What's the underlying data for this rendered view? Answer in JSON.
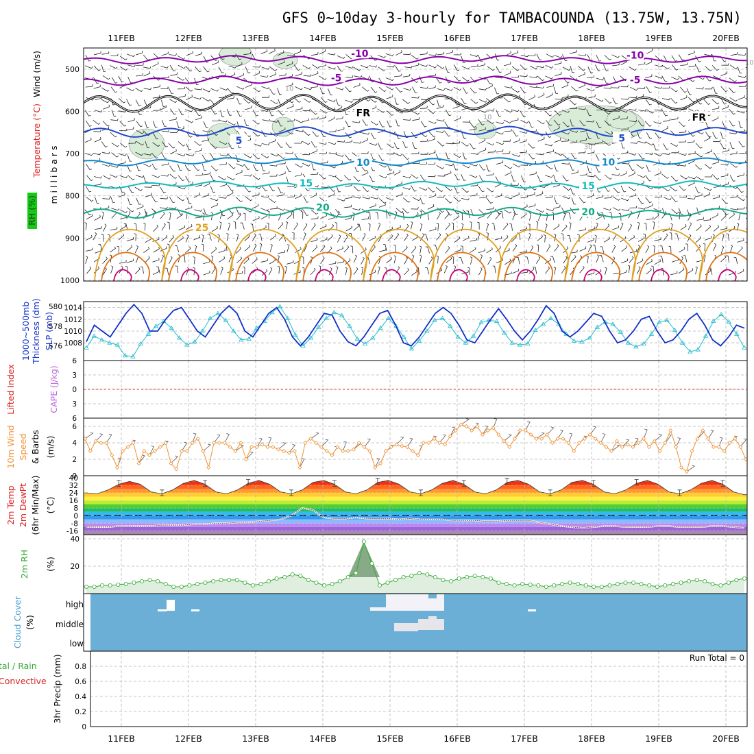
{
  "title": "GFS 0~10day 3-hourly for TAMBACOUNDA (13.75W, 13.75N)",
  "dates": [
    "11FEB",
    "12FEB",
    "13FEB",
    "14FEB",
    "15FEB",
    "16FEB",
    "17FEB",
    "18FEB",
    "19FEB",
    "20FEB"
  ],
  "colors": {
    "purple": "#8800aa",
    "black": "#000000",
    "blue": "#1f48cc",
    "teal": "#1188cc",
    "cyan": "#11bbbb",
    "green": "#11aa88",
    "orange": "#e0a020",
    "darkorange": "#e07010",
    "magenta": "#cc0077",
    "slp": "#1030c8",
    "thick": "#22bbcc",
    "wind10": "#f09030",
    "rh": "#33aa33",
    "cloud": "#6baed6"
  },
  "labels": {
    "wind": "Wind (m/s)",
    "temperature": "Temperature (°C)",
    "rh": "RH (%)",
    "millibars": "m i l l i b a r s",
    "thickness1": "1000~500mb",
    "thickness2": "Thickness (dm)",
    "slp": "SLP (mb)",
    "lifted": "Lifted Index",
    "cape": "CAPE (J/kg)",
    "wind10_1": "10m Wind",
    "wind10_2": "Speed",
    "wind10_3": "& Barbs",
    "ms": "(m/s)",
    "temp2m_1": "2m Temp",
    "temp2m_2": "2m DewPt",
    "temp2m_3": "(6hr Min/Max)",
    "degc": "(°C)",
    "rh2m": "2m RH",
    "pct": "(%)",
    "cloud1": "Cloud Cover",
    "cloud2": "(%)",
    "precip1": "tal / Rain",
    "precip2": "Convective",
    "precip3": "3hr Precip (mm)",
    "run_total": "Run Total = 0"
  },
  "chart_data": [
    {
      "type": "line",
      "title": "Upper-air cross section",
      "ylabel": "millibars",
      "yticks": [
        "500",
        "600",
        "700",
        "800",
        "900",
        "1000"
      ],
      "ylim": [
        450,
        1000
      ],
      "isotherm_labels": [
        {
          "text": "-10",
          "day": 3.55,
          "p": 463
        },
        {
          "text": "-10",
          "day": 7.65,
          "p": 467
        },
        {
          "text": "-5",
          "day": 3.2,
          "p": 520
        },
        {
          "text": "-5",
          "day": 7.65,
          "p": 525
        },
        {
          "text": "FR",
          "day": 3.6,
          "p": 603
        },
        {
          "text": "FR",
          "day": 8.6,
          "p": 614
        },
        {
          "text": "5",
          "day": 1.75,
          "p": 669
        },
        {
          "text": "5",
          "day": 7.45,
          "p": 663
        },
        {
          "text": "10",
          "day": 3.6,
          "p": 721
        },
        {
          "text": "10",
          "day": 7.25,
          "p": 720
        },
        {
          "text": "15",
          "day": 2.75,
          "p": 770
        },
        {
          "text": "15",
          "day": 6.95,
          "p": 776
        },
        {
          "text": "20",
          "day": 3.0,
          "p": 827
        },
        {
          "text": "20",
          "day": 6.95,
          "p": 838
        },
        {
          "text": "25",
          "day": 1.2,
          "p": 875
        }
      ],
      "rh_labels": [
        {
          "text": "10",
          "day": 2.5,
          "p": 545
        },
        {
          "text": "10",
          "day": 5.45,
          "p": 612
        },
        {
          "text": "30",
          "day": 6.95,
          "p": 683
        },
        {
          "text": "10",
          "day": 9.35,
          "p": 483
        }
      ]
    },
    {
      "type": "line",
      "title": "SLP and 1000-500mb Thickness",
      "slp_ticks": [
        "1014",
        "1012",
        "1010",
        "1008"
      ],
      "slp_range": [
        1005,
        1015
      ],
      "thick_ticks": [
        "580",
        "578",
        "576"
      ],
      "thick_range": [
        574.5,
        580.5
      ],
      "series": [
        {
          "name": "SLP (mb)",
          "values": [
            1008.2,
            1011,
            1010,
            1009,
            1011,
            1013,
            1014.5,
            1013,
            1010,
            1010,
            1012,
            1013.5,
            1014,
            1012,
            1010,
            1009,
            1011,
            1013,
            1014.3,
            1013,
            1010,
            1009,
            1011,
            1013,
            1014,
            1012,
            1009,
            1007.5,
            1009,
            1011,
            1013,
            1012.7,
            1010,
            1008.2,
            1007.5,
            1009,
            1011,
            1013,
            1013.5,
            1011,
            1008,
            1007.5,
            1009,
            1011,
            1013,
            1014,
            1013,
            1011,
            1008.5,
            1008,
            1010,
            1012,
            1013.8,
            1012,
            1010,
            1008.5,
            1010,
            1012,
            1014.3,
            1013,
            1010,
            1009,
            1010,
            1011.5,
            1013,
            1012.5,
            1010,
            1008,
            1008.5,
            1010,
            1012,
            1012.5,
            1010,
            1008,
            1008.5,
            1010,
            1012,
            1013,
            1011,
            1008.5,
            1007.5,
            1009,
            1011,
            1010.5
          ]
        },
        {
          "name": "Thickness (dm)",
          "values": [
            575.8,
            577,
            576.6,
            576.3,
            576.1,
            575,
            574.9,
            576.2,
            577.2,
            578,
            578.5,
            577.8,
            576.8,
            576.1,
            576.4,
            577.5,
            578.8,
            579.3,
            578.6,
            577.5,
            576.6,
            576.7,
            577.8,
            578.5,
            579.4,
            580,
            578.8,
            577.1,
            576,
            576.8,
            577.9,
            578.8,
            579.4,
            579.1,
            578,
            576.7,
            576.2,
            576.8,
            577.8,
            578.8,
            578,
            576.9,
            575.7,
            576.5,
            577.5,
            578.6,
            578.8,
            578,
            576.9,
            576.3,
            577,
            578.4,
            578.6,
            578.5,
            577.3,
            576.3,
            576.1,
            576.2,
            577.6,
            578.2,
            578.8,
            578.2,
            577.2,
            576.5,
            576.4,
            576.8,
            577.9,
            578.4,
            578.2,
            577.4,
            576.3,
            575.9,
            576.2,
            577.2,
            578.4,
            578.6,
            577.6,
            576.3,
            575.4,
            575.6,
            577,
            578.5,
            579.2,
            578.4,
            577.2,
            575.8
          ]
        }
      ]
    },
    {
      "type": "line",
      "title": "Lifted Index and CAPE",
      "yticks": [
        "6",
        "3",
        "0",
        "3",
        "6"
      ],
      "ylim": [
        -6,
        6
      ],
      "values": []
    },
    {
      "type": "line",
      "title": "10m Wind Speed",
      "yticks": [
        "0",
        "2",
        "4",
        "6"
      ],
      "ylim": [
        0,
        7
      ],
      "values": [
        4.5,
        3,
        4.2,
        4,
        4,
        2.5,
        1,
        3,
        3.5,
        4,
        1.5,
        3,
        2.5,
        3,
        3.5,
        4,
        1.5,
        0.8,
        3,
        3,
        4,
        4.5,
        3,
        1,
        4,
        4,
        4,
        3.5,
        3,
        4,
        2,
        3.5,
        3.5,
        3.8,
        3.5,
        3.5,
        3.2,
        3,
        2.8,
        3,
        1,
        4,
        4.5,
        4,
        3.5,
        3,
        2.5,
        3.5,
        3,
        3,
        3.2,
        4,
        3.5,
        3,
        1,
        1.5,
        3,
        3.5,
        3.8,
        3.6,
        3.5,
        3,
        2.5,
        4,
        4,
        4.5,
        4,
        3.8,
        4.8,
        5.5,
        6.2,
        6,
        5.5,
        6,
        5,
        5.5,
        5.8,
        5,
        4.2,
        3.5,
        4.5,
        5.5,
        5.5,
        5,
        4.5,
        4.5,
        5,
        4,
        4.5,
        4.5,
        4,
        3,
        4,
        4.5,
        5,
        4.5,
        4,
        3.5,
        3,
        4.2,
        3.5,
        3.8,
        3.5,
        4,
        4.5,
        3.5,
        4.2,
        3,
        4,
        5.5,
        3.5,
        1,
        0.5,
        3,
        4.5,
        5.5,
        4.5,
        3.5,
        3.5,
        3,
        4,
        4.5,
        3.5,
        2
      ]
    },
    {
      "type": "area",
      "title": "2m Temperature and Dew Point",
      "yticks": [
        "40",
        "32",
        "24",
        "16",
        "8",
        "0",
        "-8",
        "-16"
      ],
      "ylim": [
        -20,
        42
      ],
      "temp_values": [
        24,
        23,
        27,
        33,
        36,
        33,
        25,
        23,
        27,
        34,
        37,
        33,
        25,
        23,
        27,
        34,
        37,
        33,
        25,
        23,
        27,
        35,
        37,
        33,
        25,
        23,
        27,
        35,
        37,
        33,
        25,
        23,
        27,
        34,
        37,
        33,
        25,
        23,
        27,
        35,
        37,
        33,
        25,
        23,
        27,
        35,
        37,
        33,
        25,
        23,
        27,
        34,
        37,
        33,
        25,
        23,
        27,
        34,
        37,
        33,
        25,
        22
      ],
      "dew_values": [
        -12,
        -12,
        -12,
        -11,
        -11,
        -11,
        -11,
        -10,
        -10,
        -10,
        -9,
        -9,
        -8,
        -8,
        -7,
        -7,
        -6,
        -5,
        -4,
        0,
        8,
        6,
        -2,
        -3,
        -3,
        -2,
        -3,
        -3,
        -3,
        -4,
        -3,
        -4,
        -4,
        -4,
        -5,
        -5,
        -5,
        -6,
        -6,
        -5,
        -5,
        -5,
        -7,
        -9,
        -11,
        -12,
        -13,
        -12,
        -11,
        -11,
        -12,
        -12,
        -12,
        -11,
        -11,
        -12,
        -12,
        -12,
        -11,
        -11,
        -12,
        -13
      ]
    },
    {
      "type": "area",
      "title": "2m RH",
      "yticks": [
        "20",
        "40"
      ],
      "ylim": [
        0,
        40
      ],
      "values": [
        5,
        5,
        6,
        6,
        6.5,
        7,
        8,
        9,
        10,
        9,
        7,
        5,
        5,
        6,
        7,
        8,
        9,
        10,
        10,
        10,
        8,
        6,
        7,
        9,
        11,
        12,
        14,
        13,
        10,
        8,
        6,
        7,
        9,
        12,
        15,
        38,
        22,
        6,
        8,
        10,
        12,
        13,
        15,
        14,
        12,
        10,
        9,
        11,
        12,
        13,
        12,
        11,
        8,
        7,
        6,
        7,
        6.5,
        6,
        5,
        6,
        7,
        8,
        7,
        6,
        5,
        5,
        6,
        7,
        8,
        8,
        7,
        6,
        5,
        6,
        7,
        8,
        9,
        10,
        9,
        7,
        6,
        8,
        10,
        11
      ]
    },
    {
      "type": "heatmap",
      "title": "Cloud Cover",
      "levels": [
        "high",
        "middle",
        "low"
      ],
      "values": []
    },
    {
      "type": "bar",
      "title": "3hr Precip",
      "yticks": [
        "0",
        "0.2",
        "0.4",
        "0.6",
        "0.8"
      ],
      "ylim": [
        0,
        1
      ],
      "values": []
    }
  ]
}
